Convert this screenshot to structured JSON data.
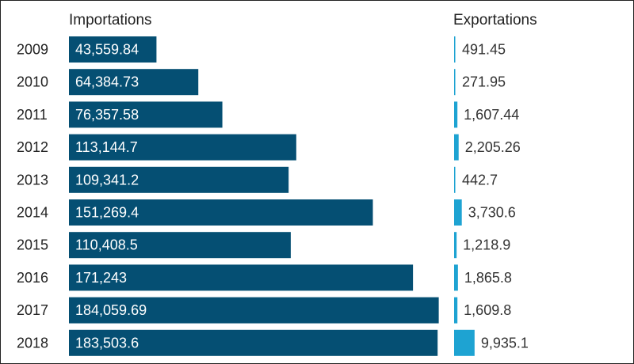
{
  "chart_data": {
    "type": "bar",
    "orientation": "horizontal",
    "categories": [
      "2009",
      "2010",
      "2011",
      "2012",
      "2013",
      "2014",
      "2015",
      "2016",
      "2017",
      "2018"
    ],
    "series": [
      {
        "name": "Importations",
        "color": "#054f73",
        "values": [
          43559.84,
          64384.73,
          76357.58,
          113144.7,
          109341.2,
          151269.4,
          110408.5,
          171243,
          184059.69,
          183503.6
        ],
        "labels": [
          "43,559.84",
          "64,384.73",
          "76,357.58",
          "113,144.7",
          "109,341.2",
          "151,269.4",
          "110,408.5",
          "171,243",
          "184,059.69",
          "183,503.6"
        ]
      },
      {
        "name": "Exportations",
        "color": "#1ea3d2",
        "values": [
          491.45,
          271.95,
          1607.44,
          2205.26,
          442.7,
          3730.6,
          1218.9,
          1865.8,
          1609.8,
          9935.1
        ],
        "labels": [
          "491.45",
          "271.95",
          "1,607.44",
          "2,205.26",
          "442.7",
          "3,730.6",
          "1,218.9",
          "1,865.8",
          "1,609.8",
          "9,935.1"
        ]
      }
    ],
    "grid": false,
    "legend": "none"
  }
}
